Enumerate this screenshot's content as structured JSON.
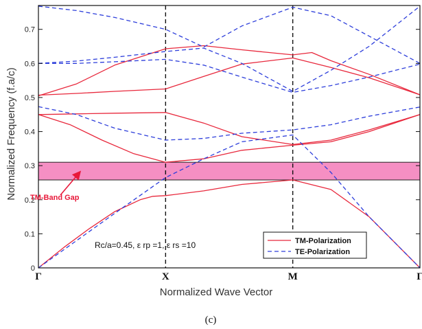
{
  "chart_data": {
    "type": "line",
    "xlabel": "Normalized Wave Vector",
    "ylabel": "Normalized Frequency (f.a/c)",
    "ylim": [
      0,
      0.77
    ],
    "xlim": [
      0,
      3
    ],
    "x_tick_labels": [
      "Γ",
      "X",
      "M",
      "Γ"
    ],
    "x_tick_positions": [
      0,
      1,
      2,
      3
    ],
    "y_ticks": [
      0,
      0.1,
      0.2,
      0.3,
      0.4,
      0.5,
      0.6,
      0.7
    ],
    "y_tick_labels": [
      "0",
      "0.1",
      "0.2",
      "0.3",
      "0.4",
      "0.5",
      "0.6",
      "0.7"
    ],
    "band_gap": {
      "from": 0.258,
      "to": 0.31,
      "color": "#f58fc3",
      "label": "TM-Band Gap"
    },
    "parameters_text": "Rc/a=0.45, ε rp =1, ε rs =10",
    "subfigure_label": "(c)",
    "legend": {
      "placement": "bottom-right",
      "entries": [
        "TM-Polarization",
        "TE-Polarization"
      ]
    },
    "series": [
      {
        "name": "TM-Polarization",
        "color": "#e8283c",
        "style": "solid",
        "bands": [
          {
            "x": [
              0,
              0.2,
              0.4,
              0.6,
              0.8,
              0.9,
              1.0,
              1.3,
              1.6,
              2.0,
              2.3,
              2.6,
              3.0
            ],
            "y": [
              0.0,
              0.06,
              0.115,
              0.165,
              0.2,
              0.21,
              0.212,
              0.226,
              0.245,
              0.258,
              0.23,
              0.15,
              0.0
            ]
          },
          {
            "x": [
              0,
              0.25,
              0.5,
              0.75,
              1.0,
              1.3,
              1.6,
              2.0,
              2.3,
              2.6,
              3.0
            ],
            "y": [
              0.45,
              0.42,
              0.375,
              0.335,
              0.31,
              0.32,
              0.345,
              0.36,
              0.37,
              0.4,
              0.45
            ]
          },
          {
            "x": [
              0,
              0.3,
              0.6,
              1.0,
              1.3,
              1.6,
              2.0,
              2.3,
              2.6,
              3.0
            ],
            "y": [
              0.45,
              0.452,
              0.454,
              0.456,
              0.425,
              0.385,
              0.362,
              0.375,
              0.405,
              0.45
            ]
          },
          {
            "x": [
              0,
              0.3,
              0.6,
              1.0,
              1.3,
              1.6,
              2.0,
              2.3,
              2.6,
              3.0
            ],
            "y": [
              0.507,
              0.512,
              0.518,
              0.525,
              0.562,
              0.598,
              0.616,
              0.588,
              0.558,
              0.508
            ]
          },
          {
            "x": [
              0,
              0.3,
              0.6,
              1.0,
              1.3,
              1.6,
              2.0,
              2.15,
              2.3,
              2.6,
              3.0
            ],
            "y": [
              0.505,
              0.54,
              0.595,
              0.643,
              0.652,
              0.64,
              0.625,
              0.632,
              0.608,
              0.568,
              0.508
            ]
          }
        ]
      },
      {
        "name": "TE-Polarization",
        "color": "#2d3edb",
        "style": "dashed",
        "bands": [
          {
            "x": [
              0,
              0.3,
              0.6,
              1.0,
              1.3,
              1.6,
              2.0,
              2.3,
              2.6,
              3.0
            ],
            "y": [
              0.0,
              0.08,
              0.16,
              0.265,
              0.32,
              0.37,
              0.39,
              0.28,
              0.15,
              0.0
            ]
          },
          {
            "x": [
              0,
              0.3,
              0.6,
              1.0,
              1.3,
              1.6,
              2.0,
              2.3,
              2.6,
              3.0
            ],
            "y": [
              0.473,
              0.45,
              0.41,
              0.375,
              0.38,
              0.395,
              0.405,
              0.42,
              0.445,
              0.472
            ]
          },
          {
            "x": [
              0,
              0.3,
              0.6,
              1.0,
              1.3,
              1.6,
              2.0,
              2.3,
              2.6,
              3.0
            ],
            "y": [
              0.6,
              0.6,
              0.605,
              0.612,
              0.595,
              0.56,
              0.515,
              0.535,
              0.56,
              0.598
            ]
          },
          {
            "x": [
              0,
              0.3,
              0.6,
              1.0,
              1.3,
              1.6,
              2.0,
              2.3,
              2.6,
              3.0
            ],
            "y": [
              0.6,
              0.607,
              0.618,
              0.635,
              0.645,
              0.6,
              0.518,
              0.58,
              0.65,
              0.768
            ]
          },
          {
            "x": [
              0,
              0.3,
              0.6,
              1.0,
              1.3,
              1.6,
              2.0,
              2.3,
              2.6,
              3.0
            ],
            "y": [
              0.768,
              0.755,
              0.735,
              0.7,
              0.648,
              0.71,
              0.765,
              0.74,
              0.68,
              0.6
            ]
          }
        ]
      }
    ]
  }
}
